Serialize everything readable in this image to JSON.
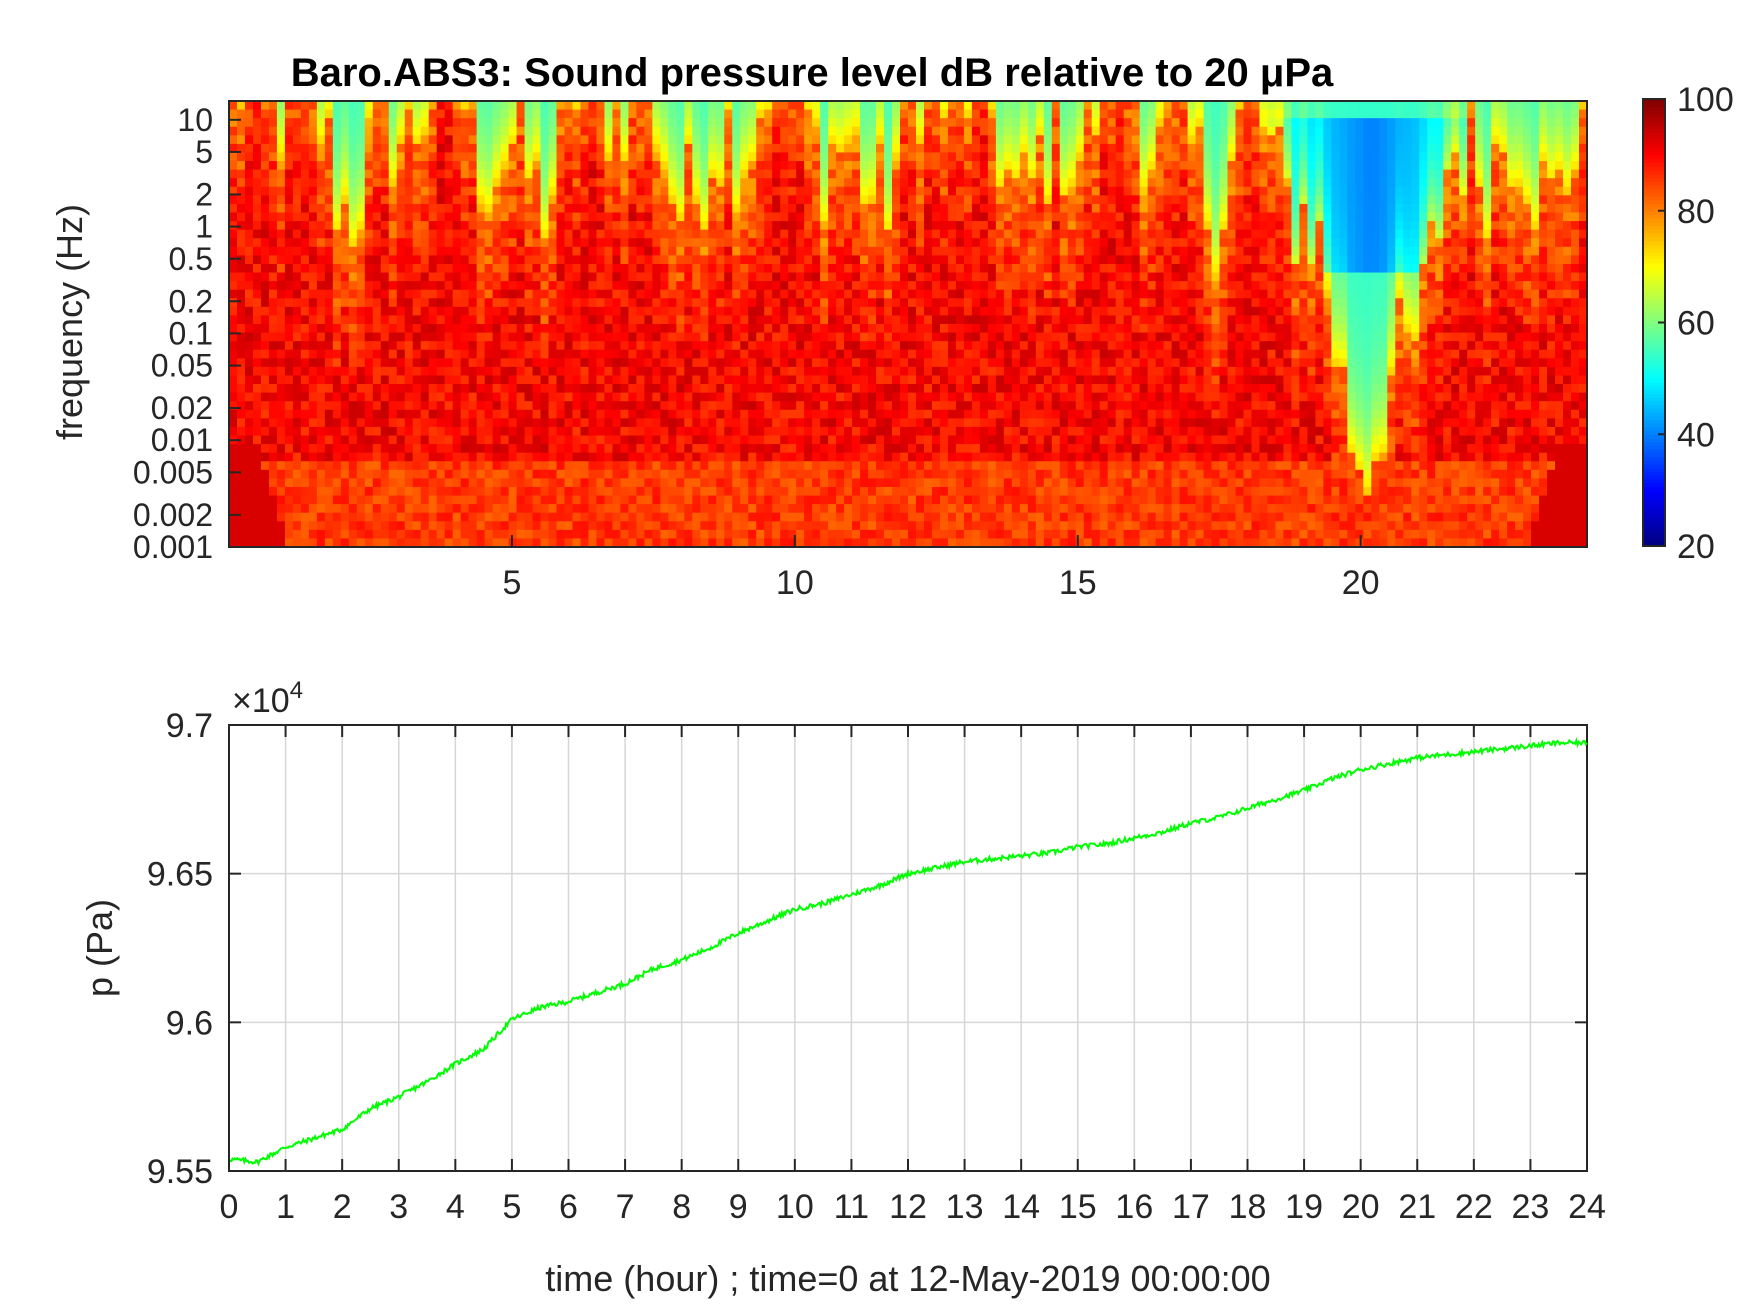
{
  "chart_data": [
    {
      "type": "heatmap",
      "title": "Baro.ABS3: Sound pressure level dB relative to 20 μPa",
      "ylabel": "frequency (Hz)",
      "xlabel": "",
      "xlim": [
        0,
        24
      ],
      "x_ticks": [
        "5",
        "10",
        "15",
        "20"
      ],
      "x_tick_values": [
        5,
        10,
        15,
        20
      ],
      "y_scale": "log",
      "ylim": [
        0.001,
        15
      ],
      "y_ticks": [
        "0.001",
        "0.002",
        "0.005",
        "0.01",
        "0.02",
        "0.05",
        "0.1",
        "0.2",
        "0.5",
        "1",
        "2",
        "5",
        "10"
      ],
      "y_tick_values": [
        0.001,
        0.002,
        0.005,
        0.01,
        0.02,
        0.05,
        0.1,
        0.2,
        0.5,
        1,
        2,
        5,
        10
      ],
      "colormap": "jet",
      "colorbar": {
        "range": [
          20,
          100
        ],
        "ticks": [
          "20",
          "40",
          "60",
          "80",
          "100"
        ],
        "tick_values": [
          20,
          40,
          60,
          80,
          100
        ]
      },
      "quiet_region": {
        "x_range_hours": [
          18,
          22
        ],
        "freq_range_hz": [
          0.5,
          10
        ],
        "level_db": 38
      },
      "grid": false
    },
    {
      "type": "line",
      "xlabel": "time (hour) ; time=0 at 12-May-2019 00:00:00",
      "ylabel": "p (Pa)",
      "y_exponent_label": "×10",
      "y_exponent_power": "4",
      "xlim": [
        0,
        24
      ],
      "ylim": [
        9.55,
        9.7
      ],
      "x_ticks": [
        "0",
        "1",
        "2",
        "3",
        "4",
        "5",
        "6",
        "7",
        "8",
        "9",
        "10",
        "11",
        "12",
        "13",
        "14",
        "15",
        "16",
        "17",
        "18",
        "19",
        "20",
        "21",
        "22",
        "23",
        "24"
      ],
      "y_ticks": [
        "9.55",
        "9.6",
        "9.65",
        "9.7"
      ],
      "y_tick_values": [
        9.55,
        9.6,
        9.65,
        9.7
      ],
      "grid": true,
      "series": [
        {
          "color": "#00ff00",
          "x": [
            0,
            0.5,
            1,
            1.5,
            2,
            2.5,
            3,
            3.5,
            4,
            4.5,
            5,
            5.5,
            6,
            6.5,
            7,
            7.5,
            8,
            8.5,
            9,
            9.5,
            10,
            10.5,
            11,
            11.5,
            12,
            12.5,
            13,
            13.5,
            14,
            14.5,
            15,
            15.5,
            16,
            16.5,
            17,
            17.5,
            18,
            18.5,
            19,
            19.5,
            20,
            20.5,
            21,
            21.5,
            22,
            22.5,
            23,
            23.5,
            24
          ],
          "values": [
            9.554,
            9.553,
            9.558,
            9.561,
            9.564,
            9.571,
            9.575,
            9.58,
            9.586,
            9.591,
            9.601,
            9.605,
            9.607,
            9.61,
            9.613,
            9.618,
            9.621,
            9.625,
            9.63,
            9.634,
            9.638,
            9.64,
            9.643,
            9.646,
            9.65,
            9.652,
            9.654,
            9.655,
            9.656,
            9.657,
            9.659,
            9.66,
            9.662,
            9.664,
            9.667,
            9.669,
            9.672,
            9.675,
            9.678,
            9.682,
            9.685,
            9.687,
            9.689,
            9.69,
            9.691,
            9.692,
            9.693,
            9.694,
            9.694
          ]
        }
      ]
    }
  ]
}
